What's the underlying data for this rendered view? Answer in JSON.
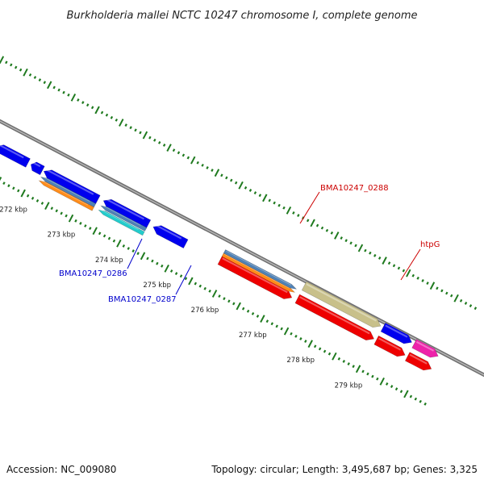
{
  "title": "Burkholderia mallei NCTC 10247 chromosome I, complete genome",
  "footer": {
    "accession": "Accession: NC_009080",
    "topology": "Topology: circular; Length: 3,495,687 bp; Genes: 3,325"
  },
  "colors": {
    "backbone": "#888888",
    "tick": "#1f7a1f",
    "blue_cds": "#0000ee",
    "red_cds": "#ee0000",
    "orange": "#ff8c1a",
    "steelblue": "#4f81b5",
    "cyan": "#22cccc",
    "olive": "#c8c08a",
    "magenta": "#ee22aa",
    "label_blue": "#0000cc",
    "label_red": "#cc0000"
  },
  "scale": {
    "unit": "kbp",
    "labels": [
      {
        "value": 272,
        "text": "272 kbp"
      },
      {
        "value": 273,
        "text": "273 kbp"
      },
      {
        "value": 274,
        "text": "274 kbp"
      },
      {
        "value": 275,
        "text": "275 kbp"
      },
      {
        "value": 276,
        "text": "276 kbp"
      },
      {
        "value": 277,
        "text": "277 kbp"
      },
      {
        "value": 278,
        "text": "278 kbp"
      },
      {
        "value": 279,
        "text": "279 kbp"
      }
    ]
  },
  "gene_labels": [
    {
      "text": "BMA10247_0286",
      "color": "blue"
    },
    {
      "text": "BMA10247_0287",
      "color": "blue"
    },
    {
      "text": "BMA10247_0288",
      "color": "red"
    },
    {
      "text": "htpG",
      "color": "red"
    }
  ],
  "features": [
    {
      "kind": "blue",
      "strand": "minus",
      "start": 271.15,
      "end": 271.82
    },
    {
      "kind": "blue",
      "strand": "minus",
      "start": 271.88,
      "end": 272.12
    },
    {
      "kind": "blue",
      "strand": "minus",
      "start": 272.15,
      "end": 273.28
    },
    {
      "kind": "steelblue",
      "strand": "minus",
      "start": 272.15,
      "end": 273.28
    },
    {
      "kind": "orange",
      "strand": "minus",
      "start": 272.15,
      "end": 273.28
    },
    {
      "kind": "blue",
      "strand": "minus",
      "start": 273.38,
      "end": 274.32
    },
    {
      "kind": "steelblue",
      "strand": "minus",
      "start": 273.38,
      "end": 274.32
    },
    {
      "kind": "cyan",
      "strand": "minus",
      "start": 273.38,
      "end": 274.32
    },
    {
      "kind": "blue",
      "strand": "minus",
      "start": 274.42,
      "end": 275.1
    },
    {
      "kind": "red",
      "strand": "plus",
      "start": 275.8,
      "end": 277.3
    },
    {
      "kind": "orange",
      "strand": "plus",
      "start": 275.8,
      "end": 277.3
    },
    {
      "kind": "steelblue",
      "strand": "plus",
      "start": 275.8,
      "end": 277.3
    },
    {
      "kind": "red",
      "strand": "plus",
      "start": 277.4,
      "end": 279.0
    },
    {
      "kind": "olive",
      "strand": "plus",
      "start": 277.4,
      "end": 279.0
    },
    {
      "kind": "red",
      "strand": "plus",
      "start": 279.05,
      "end": 279.65
    },
    {
      "kind": "blue",
      "strand": "plus",
      "start": 279.05,
      "end": 279.65
    },
    {
      "kind": "red",
      "strand": "plus",
      "start": 279.7,
      "end": 280.2
    },
    {
      "kind": "magenta",
      "strand": "plus",
      "start": 279.7,
      "end": 280.2
    }
  ]
}
